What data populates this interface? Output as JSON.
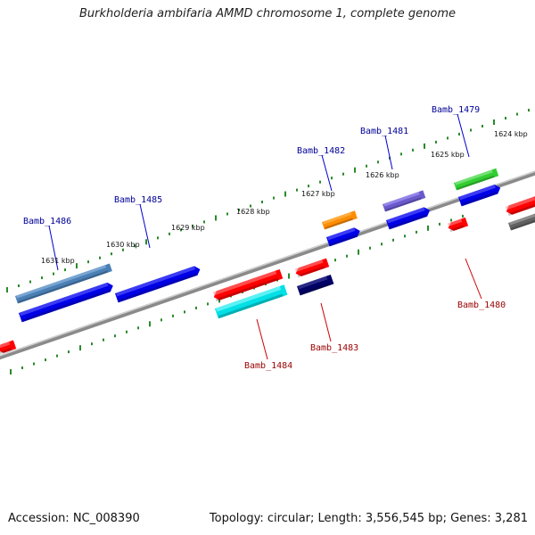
{
  "title": "Burkholderia ambifaria AMMD chromosome 1, complete genome",
  "footer": {
    "accession": "Accession: NC_008390",
    "stats": "Topology: circular; Length: 3,556,545 bp; Genes: 3,281"
  },
  "scale": {
    "labels": [
      "1624 kbp",
      "1625 kbp",
      "1626 kbp",
      "1627 kbp",
      "1628 kbp",
      "1629 kbp",
      "1630 kbp",
      "1631 kbp"
    ]
  },
  "gene_labels": {
    "forward": [
      "Bamb_1486",
      "Bamb_1485",
      "Bamb_1482",
      "Bamb_1481",
      "Bamb_1479"
    ],
    "reverse": [
      "Bamb_1484",
      "Bamb_1483",
      "Bamb_1480"
    ]
  },
  "colors": {
    "backbone": "#808080",
    "tick": "#2a8a2a",
    "forward_label": "#000099",
    "reverse_label": "#990000"
  }
}
